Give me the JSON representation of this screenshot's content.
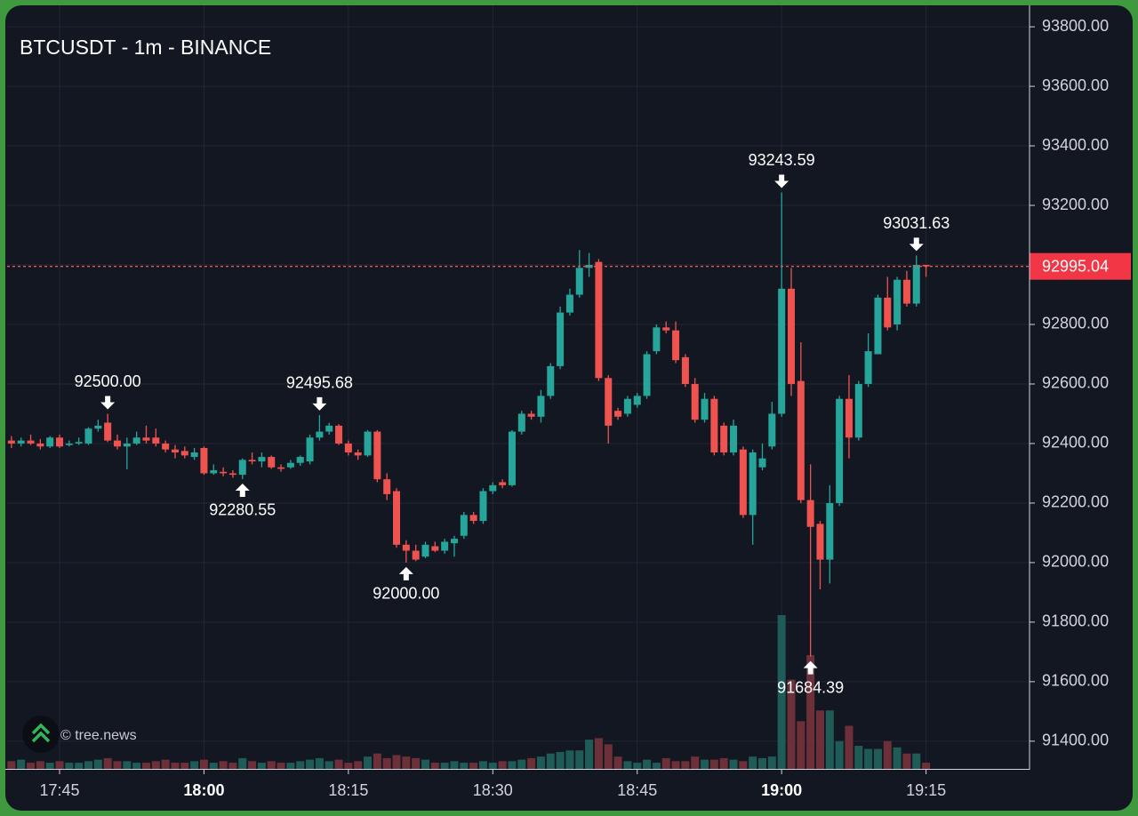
{
  "chart_data": {
    "type": "candlestick",
    "title": "BTCUSDT - 1m - BINANCE",
    "watermark": "© tree.news",
    "x": [
      "17:40",
      "17:41",
      "17:42",
      "17:43",
      "17:44",
      "17:45",
      "17:46",
      "17:47",
      "17:48",
      "17:49",
      "17:50",
      "17:51",
      "17:52",
      "17:53",
      "17:54",
      "17:55",
      "17:56",
      "17:57",
      "17:58",
      "17:59",
      "18:00",
      "18:01",
      "18:02",
      "18:03",
      "18:04",
      "18:05",
      "18:06",
      "18:07",
      "18:08",
      "18:09",
      "18:10",
      "18:11",
      "18:12",
      "18:13",
      "18:14",
      "18:15",
      "18:16",
      "18:17",
      "18:18",
      "18:19",
      "18:20",
      "18:21",
      "18:22",
      "18:23",
      "18:24",
      "18:25",
      "18:26",
      "18:27",
      "18:28",
      "18:29",
      "18:30",
      "18:31",
      "18:32",
      "18:33",
      "18:34",
      "18:35",
      "18:36",
      "18:37",
      "18:38",
      "18:39",
      "18:40",
      "18:41",
      "18:42",
      "18:43",
      "18:44",
      "18:45",
      "18:46",
      "18:47",
      "18:48",
      "18:49",
      "18:50",
      "18:51",
      "18:52",
      "18:53",
      "18:54",
      "18:55",
      "18:56",
      "18:57",
      "18:58",
      "18:59",
      "19:00",
      "19:01",
      "19:02",
      "19:03",
      "19:04",
      "19:05",
      "19:06",
      "19:07",
      "19:08",
      "19:09",
      "19:10",
      "19:11",
      "19:12",
      "19:13",
      "19:14",
      "19:15"
    ],
    "open": [
      92410,
      92400,
      92410,
      92400,
      92390,
      92420,
      92395,
      92400,
      92400,
      92450,
      92470,
      92410,
      92390,
      92400,
      92420,
      92420,
      92400,
      92380,
      92375,
      92355,
      92385,
      92300,
      92305,
      92300,
      92295,
      92345,
      92340,
      92355,
      92320,
      92320,
      92335,
      92340,
      92420,
      92440,
      92460,
      92400,
      92370,
      92360,
      92440,
      92280,
      92240,
      92060,
      92040,
      92020,
      92055,
      92040,
      92065,
      92090,
      92160,
      92140,
      92240,
      92270,
      92260,
      92440,
      92500,
      92490,
      92560,
      92660,
      92840,
      92900,
      92990,
      93010,
      92620,
      92510,
      92500,
      92530,
      92560,
      92710,
      92790,
      92780,
      92690,
      92600,
      92480,
      92550,
      92460,
      92370,
      92380,
      92160,
      92320,
      92390,
      92500,
      92920,
      92610,
      92210,
      92130,
      92010,
      92200,
      92550,
      92420,
      92600,
      92700,
      92890,
      92800,
      92950,
      92870,
      93000
    ],
    "high": [
      92425,
      92420,
      92430,
      92415,
      92425,
      92430,
      92410,
      92420,
      92455,
      92480,
      92500,
      92430,
      92420,
      92440,
      92460,
      92450,
      92410,
      92395,
      92390,
      92385,
      92390,
      92330,
      92320,
      92310,
      92350,
      92370,
      92370,
      92360,
      92330,
      92345,
      92360,
      92430,
      92495.68,
      92470,
      92465,
      92410,
      92380,
      92445,
      92445,
      92300,
      92250,
      92075,
      92060,
      92070,
      92070,
      92080,
      92090,
      92170,
      92170,
      92250,
      92270,
      92280,
      92445,
      92510,
      92510,
      92580,
      92670,
      92860,
      92920,
      93050,
      93040,
      93020,
      92630,
      92520,
      92560,
      92570,
      92710,
      92800,
      92810,
      92810,
      92700,
      92620,
      92570,
      92560,
      92470,
      92480,
      92390,
      92380,
      92400,
      92540,
      93243.59,
      92990,
      92740,
      92330,
      92140,
      92260,
      92560,
      92630,
      92610,
      92770,
      92900,
      92960,
      92960,
      92980,
      93031.63,
      93000
    ],
    "low": [
      92385,
      92390,
      92395,
      92380,
      92385,
      92385,
      92390,
      92395,
      92395,
      92440,
      92405,
      92380,
      92313,
      92395,
      92400,
      92390,
      92370,
      92350,
      92350,
      92345,
      92295,
      92295,
      92290,
      92285,
      92280.55,
      92330,
      92320,
      92315,
      92305,
      92315,
      92325,
      92330,
      92410,
      92430,
      92395,
      92360,
      92345,
      92355,
      92270,
      92210,
      92050,
      92000,
      92005,
      92015,
      92035,
      92030,
      92020,
      92080,
      92130,
      92130,
      92230,
      92250,
      92255,
      92430,
      92480,
      92470,
      92550,
      92650,
      92830,
      92890,
      92960,
      92610,
      92400,
      92480,
      92490,
      92520,
      92550,
      92700,
      92770,
      92670,
      92590,
      92470,
      92470,
      92360,
      92360,
      92360,
      92150,
      92060,
      92310,
      92380,
      92490,
      92560,
      92200,
      91684.39,
      91910,
      91930,
      92190,
      92350,
      92410,
      92590,
      92700,
      92780,
      92780,
      92860,
      92860,
      92960
    ],
    "close": [
      92400,
      92410,
      92400,
      92390,
      92420,
      92390,
      92400,
      92405,
      92450,
      92460,
      92410,
      92390,
      92400,
      92420,
      92410,
      92400,
      92380,
      92370,
      92360,
      92370,
      92300,
      92310,
      92300,
      92295,
      92345,
      92340,
      92355,
      92320,
      92315,
      92335,
      92355,
      92420,
      92440,
      92460,
      92400,
      92370,
      92360,
      92440,
      92280,
      92230,
      92060,
      92040,
      92010,
      92060,
      92040,
      92070,
      92080,
      92160,
      92140,
      92240,
      92260,
      92260,
      92440,
      92500,
      92490,
      92560,
      92660,
      92840,
      92900,
      92990,
      93000,
      92620,
      92460,
      92490,
      92550,
      92560,
      92700,
      92790,
      92780,
      92680,
      92600,
      92480,
      92550,
      92370,
      92370,
      92460,
      92160,
      92370,
      92350,
      92500,
      92920,
      92600,
      92210,
      92120,
      92010,
      92200,
      92550,
      92420,
      92600,
      92710,
      92890,
      92790,
      92950,
      92870,
      93000,
      92995.04
    ],
    "volume": [
      5,
      6,
      4,
      5,
      4,
      5,
      4,
      4,
      5,
      6,
      7,
      5,
      5,
      4,
      4,
      5,
      6,
      4,
      4,
      5,
      6,
      4,
      5,
      4,
      7,
      5,
      4,
      5,
      4,
      4,
      5,
      6,
      7,
      5,
      6,
      4,
      5,
      8,
      10,
      7,
      9,
      8,
      7,
      6,
      4,
      4,
      5,
      4,
      4,
      5,
      4,
      5,
      5,
      6,
      7,
      8,
      10,
      11,
      12,
      12,
      19,
      20,
      16,
      8,
      5,
      4,
      6,
      4,
      7,
      5,
      5,
      8,
      6,
      6,
      7,
      6,
      5,
      8,
      7,
      8,
      100,
      58,
      31,
      74,
      38,
      38,
      18,
      28,
      15,
      13,
      13,
      18,
      14,
      10,
      10,
      4
    ],
    "colors": {
      "up": "#26a69a",
      "down": "#ef5350",
      "volume_up": "#1f5c57",
      "volume_down": "#6e3038"
    },
    "xlim": [
      "17:39:33",
      "19:25:45"
    ],
    "xticks": [
      "17:45",
      "18:00",
      "18:15",
      "18:30",
      "18:45",
      "19:00",
      "19:15"
    ],
    "ylim": [
      91307,
      93866
    ],
    "yticks": [
      {
        "value": 91400,
        "label": "91400.00"
      },
      {
        "value": 91600,
        "label": "91600.00"
      },
      {
        "value": 91800,
        "label": "91800.00"
      },
      {
        "value": 92000,
        "label": "92000.00"
      },
      {
        "value": 92200,
        "label": "92200.00"
      },
      {
        "value": 92400,
        "label": "92400.00"
      },
      {
        "value": 92600,
        "label": "92600.00"
      },
      {
        "value": 92800,
        "label": "92800.00"
      },
      {
        "value": 93000,
        "label": "93000.00"
      },
      {
        "value": 93200,
        "label": "93200.00"
      },
      {
        "value": 93400,
        "label": "93400.00"
      },
      {
        "value": 93600,
        "label": "93600.00"
      },
      {
        "value": 93800,
        "label": "93800.00"
      }
    ],
    "grid": true,
    "last_price": 92995.04,
    "annotations": [
      {
        "x": "17:50",
        "side": "high",
        "value": 92500,
        "label": "92500.00"
      },
      {
        "x": "18:04",
        "side": "low",
        "value": 92280.55
      },
      {
        "x": "18:12",
        "side": "high",
        "value": 92495.68
      },
      {
        "x": "18:21",
        "side": "low",
        "value": 92000,
        "label": "92000.00"
      },
      {
        "x": "19:00",
        "side": "high",
        "value": 93243.59
      },
      {
        "x": "19:03",
        "side": "low",
        "value": 91684.39
      },
      {
        "x": "19:14",
        "side": "high",
        "value": 93031.63
      }
    ]
  }
}
